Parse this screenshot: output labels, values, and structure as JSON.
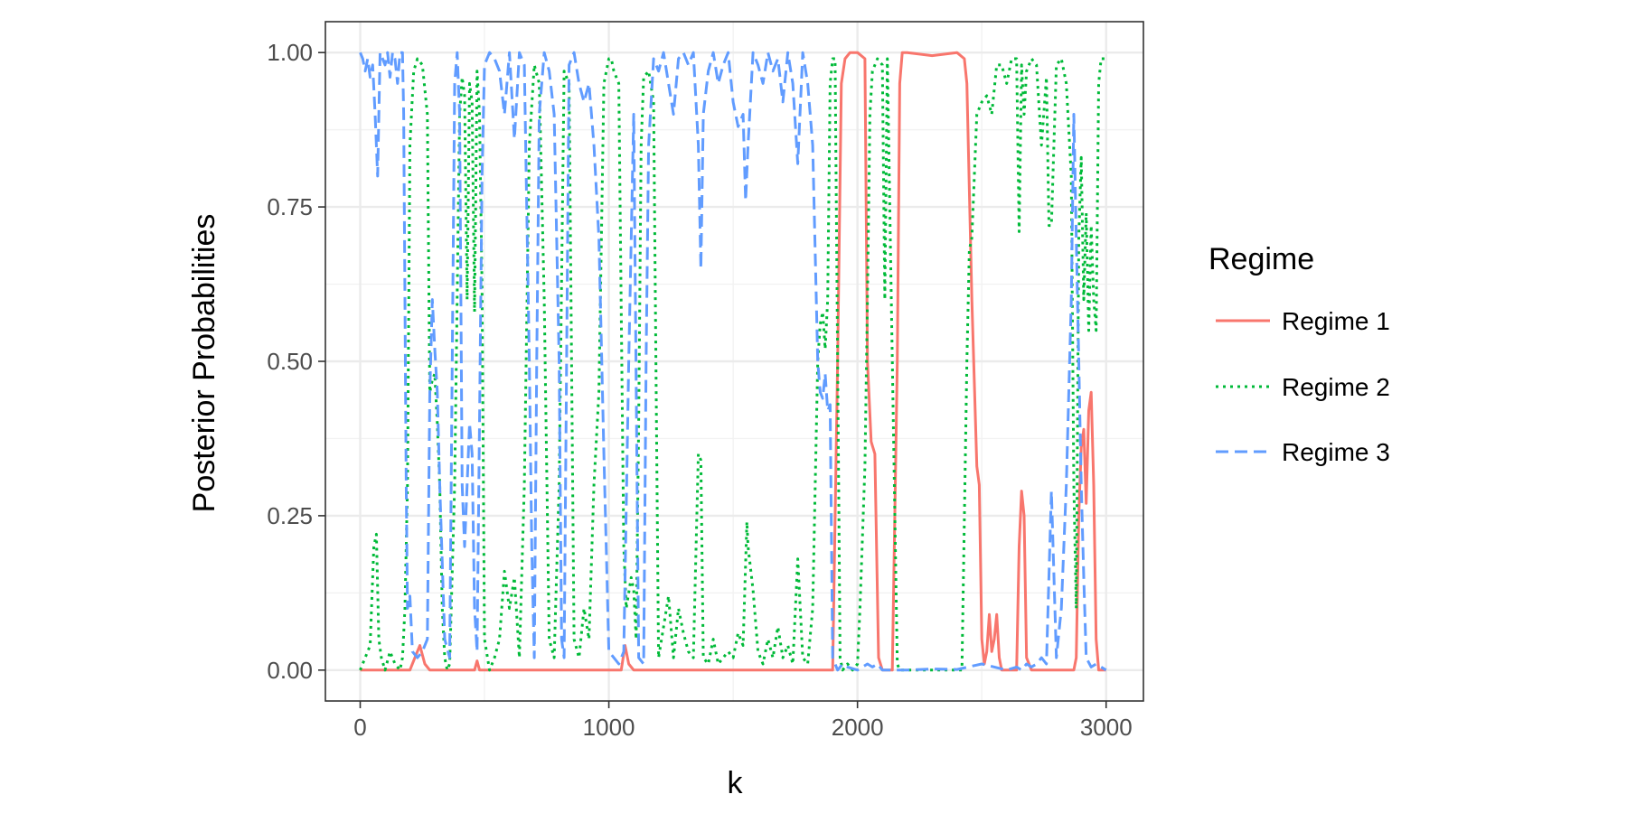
{
  "chart_data": {
    "type": "line",
    "title": "",
    "xlabel": "k",
    "ylabel": "Posterior Probabilities",
    "xlim": [
      -140,
      3150
    ],
    "ylim": [
      -0.05,
      1.05
    ],
    "x_ticks": [
      0,
      1000,
      2000,
      3000
    ],
    "x_tick_labels": [
      "0",
      "1000",
      "2000",
      "3000"
    ],
    "y_ticks": [
      0,
      0.25,
      0.5,
      0.75,
      1
    ],
    "y_tick_labels": [
      "0.00",
      "0.25",
      "0.50",
      "0.75",
      "1.00"
    ],
    "grid": true,
    "legend": {
      "title": "Regime",
      "position": "right"
    },
    "series": [
      {
        "name": "Regime 1",
        "color": "#F8766D",
        "dash": "solid",
        "x": [
          0,
          200,
          220,
          240,
          260,
          280,
          300,
          460,
          470,
          480,
          500,
          1050,
          1065,
          1080,
          1100,
          1900,
          1920,
          1935,
          1950,
          1970,
          2000,
          2030,
          2040,
          2055,
          2070,
          2085,
          2100,
          2140,
          2160,
          2170,
          2180,
          2200,
          2300,
          2400,
          2430,
          2440,
          2460,
          2480,
          2490,
          2500,
          2510,
          2520,
          2530,
          2540,
          2550,
          2560,
          2570,
          2580,
          2600,
          2640,
          2650,
          2660,
          2670,
          2680,
          2700,
          2870,
          2880,
          2890,
          2900,
          2910,
          2920,
          2930,
          2940,
          2950,
          2960,
          2970,
          3000
        ],
        "y": [
          0,
          0,
          0.02,
          0.04,
          0.01,
          0,
          0,
          0,
          0.015,
          0,
          0,
          0,
          0.04,
          0.01,
          0,
          0,
          0.5,
          0.95,
          0.99,
          1.0,
          1.0,
          0.99,
          0.5,
          0.37,
          0.35,
          0.02,
          0,
          0,
          0.5,
          0.95,
          1.0,
          1.0,
          0.995,
          1.0,
          0.99,
          0.95,
          0.6,
          0.33,
          0.3,
          0.05,
          0.01,
          0.03,
          0.09,
          0.03,
          0.05,
          0.09,
          0.02,
          0,
          0,
          0,
          0.2,
          0.29,
          0.25,
          0.02,
          0,
          0,
          0.02,
          0.25,
          0.36,
          0.39,
          0.27,
          0.42,
          0.45,
          0.3,
          0.05,
          0,
          0
        ]
      },
      {
        "name": "Regime 2",
        "color": "#00BA38",
        "dash": "dotted",
        "x": [
          0,
          20,
          40,
          55,
          65,
          75,
          85,
          100,
          120,
          140,
          160,
          170,
          180,
          190,
          200,
          215,
          230,
          250,
          270,
          280,
          290,
          300,
          310,
          320,
          330,
          340,
          350,
          360,
          380,
          400,
          410,
          420,
          430,
          440,
          450,
          460,
          470,
          480,
          490,
          500,
          520,
          540,
          560,
          580,
          600,
          620,
          640,
          660,
          680,
          700,
          720,
          740,
          760,
          780,
          800,
          820,
          840,
          860,
          880,
          900,
          920,
          940,
          960,
          980,
          1000,
          1010,
          1020,
          1040,
          1060,
          1070,
          1090,
          1100,
          1110,
          1120,
          1130,
          1140,
          1160,
          1180,
          1200,
          1220,
          1240,
          1260,
          1280,
          1300,
          1320,
          1340,
          1360,
          1370,
          1380,
          1400,
          1420,
          1440,
          1460,
          1480,
          1500,
          1520,
          1540,
          1555,
          1560,
          1580,
          1600,
          1620,
          1640,
          1660,
          1680,
          1700,
          1720,
          1740,
          1760,
          1780,
          1800,
          1820,
          1840,
          1850,
          1860,
          1870,
          1880,
          1890,
          1900,
          1910,
          1920,
          1930,
          1940,
          1960,
          1980,
          2000,
          2010,
          2030,
          2040,
          2050,
          2060,
          2080,
          2100,
          2110,
          2120,
          2140,
          2160,
          2170,
          2200,
          2300,
          2400,
          2420,
          2440,
          2450,
          2460,
          2480,
          2500,
          2520,
          2540,
          2560,
          2580,
          2600,
          2620,
          2640,
          2650,
          2660,
          2670,
          2680,
          2700,
          2720,
          2740,
          2760,
          2770,
          2780,
          2800,
          2820,
          2840,
          2860,
          2870,
          2880,
          2890,
          2900,
          2910,
          2920,
          2930,
          2940,
          2950,
          2960,
          2970,
          2980,
          3000
        ],
        "y": [
          0,
          0.02,
          0.04,
          0.2,
          0.22,
          0.05,
          0.02,
          0,
          0.03,
          0.01,
          0,
          0.02,
          0.1,
          0.3,
          0.85,
          0.97,
          0.99,
          0.98,
          0.9,
          0.45,
          0.47,
          0.48,
          0.4,
          0.3,
          0.1,
          0.02,
          0,
          0.01,
          0.3,
          0.9,
          0.96,
          0.93,
          0.6,
          0.95,
          0.92,
          0.58,
          0.97,
          0.9,
          0.62,
          0.05,
          0,
          0.02,
          0.05,
          0.16,
          0.1,
          0.15,
          0.02,
          0.3,
          0.85,
          0.98,
          0.95,
          0.6,
          0.05,
          0.02,
          0.3,
          0.97,
          0.95,
          0.05,
          0.02,
          0.1,
          0.05,
          0.3,
          0.45,
          0.95,
          0.99,
          0.99,
          0.97,
          0.95,
          0.2,
          0.1,
          0.15,
          0.13,
          0.05,
          0.4,
          0.85,
          0.96,
          0.97,
          0.92,
          0.02,
          0.07,
          0.12,
          0.02,
          0.1,
          0.06,
          0.03,
          0.02,
          0.35,
          0.34,
          0.02,
          0.01,
          0.05,
          0.01,
          0.02,
          0.03,
          0.02,
          0.06,
          0.04,
          0.24,
          0.2,
          0.13,
          0.03,
          0.01,
          0.05,
          0.02,
          0.07,
          0.02,
          0.04,
          0.01,
          0.18,
          0.02,
          0.01,
          0.1,
          0.5,
          0.56,
          0.58,
          0.52,
          0.6,
          0.95,
          0.99,
          0.99,
          0.5,
          0.02,
          0,
          0.01,
          0,
          0.01,
          0.1,
          0.33,
          0.6,
          0.9,
          0.97,
          0.99,
          0.98,
          0.6,
          0.99,
          0.5,
          0.01,
          0,
          0,
          0,
          0,
          0,
          0.5,
          0.68,
          0.7,
          0.9,
          0.92,
          0.93,
          0.9,
          0.98,
          0.98,
          0.95,
          0.99,
          0.99,
          0.71,
          0.98,
          0.9,
          0.97,
          0.99,
          0.98,
          0.85,
          0.96,
          0.72,
          0.72,
          0.98,
          0.99,
          0.95,
          0.8,
          0.3,
          0.1,
          0.7,
          0.83,
          0.6,
          0.74,
          0.55,
          0.72,
          0.6,
          0.55,
          0.95,
          0.99,
          0.99
        ]
      },
      {
        "name": "Regime 3",
        "color": "#619CFF",
        "dash": "dashed",
        "x": [
          0,
          10,
          20,
          30,
          40,
          50,
          60,
          70,
          80,
          90,
          100,
          110,
          120,
          130,
          140,
          150,
          160,
          170,
          175,
          180,
          185,
          190,
          200,
          210,
          230,
          250,
          270,
          280,
          290,
          300,
          310,
          320,
          340,
          360,
          380,
          390,
          400,
          410,
          420,
          430,
          440,
          450,
          460,
          470,
          480,
          490,
          500,
          520,
          540,
          560,
          580,
          600,
          620,
          640,
          660,
          680,
          690,
          700,
          710,
          720,
          740,
          760,
          780,
          800,
          810,
          820,
          840,
          860,
          880,
          900,
          920,
          940,
          960,
          980,
          1000,
          1020,
          1040,
          1060,
          1080,
          1100,
          1120,
          1140,
          1150,
          1160,
          1180,
          1200,
          1220,
          1240,
          1260,
          1280,
          1300,
          1320,
          1340,
          1360,
          1370,
          1380,
          1400,
          1420,
          1440,
          1460,
          1480,
          1500,
          1520,
          1540,
          1550,
          1560,
          1580,
          1600,
          1620,
          1640,
          1660,
          1680,
          1700,
          1720,
          1740,
          1760,
          1780,
          1800,
          1820,
          1840,
          1850,
          1860,
          1870,
          1880,
          1890,
          1900,
          1910,
          1920,
          1940,
          1960,
          2000,
          2040,
          2060,
          2080,
          2100,
          2140,
          2200,
          2300,
          2400,
          2500,
          2600,
          2640,
          2660,
          2680,
          2700,
          2720,
          2740,
          2760,
          2780,
          2800,
          2820,
          2840,
          2860,
          2870,
          2880,
          2890,
          2900,
          2910,
          2920,
          2940,
          2960,
          3000
        ],
        "y": [
          1.0,
          0.99,
          0.97,
          0.99,
          0.96,
          0.98,
          0.9,
          0.8,
          1.0,
          0.99,
          0.98,
          1.0,
          0.96,
          1.0,
          0.99,
          0.95,
          1.0,
          1.0,
          0.9,
          0.6,
          0.3,
          0.1,
          0.12,
          0.03,
          0.02,
          0.03,
          0.05,
          0.45,
          0.6,
          0.52,
          0.45,
          0.3,
          0.05,
          0.02,
          0.95,
          1.0,
          0.9,
          0.3,
          0.2,
          0.3,
          0.4,
          0.35,
          0.1,
          0.03,
          0.4,
          0.8,
          0.98,
          1.0,
          0.99,
          0.97,
          0.9,
          1.0,
          0.86,
          1.0,
          0.98,
          0.5,
          0.2,
          0.02,
          0.5,
          0.9,
          1.0,
          0.97,
          0.9,
          0.5,
          0.05,
          0.02,
          0.98,
          1.0,
          0.95,
          0.92,
          0.95,
          0.85,
          0.7,
          0.35,
          0.03,
          0.02,
          0.01,
          0.03,
          0.5,
          0.9,
          0.02,
          0.01,
          0.5,
          0.85,
          0.99,
          0.97,
          1.0,
          0.95,
          0.9,
          0.99,
          1.0,
          0.98,
          1.0,
          0.85,
          0.65,
          0.9,
          0.97,
          1.0,
          0.95,
          0.98,
          1.0,
          0.92,
          0.88,
          0.9,
          0.76,
          0.85,
          1.0,
          0.98,
          0.95,
          1.0,
          0.97,
          0.99,
          0.92,
          1.0,
          0.95,
          0.82,
          1.0,
          0.95,
          0.85,
          0.5,
          0.45,
          0.44,
          0.48,
          0.42,
          0.43,
          0.02,
          0.01,
          0,
          0.01,
          0.005,
          0,
          0.01,
          0.005,
          0.01,
          0,
          0,
          0,
          0.002,
          0.001,
          0.01,
          0,
          0.005,
          0,
          0.01,
          0.005,
          0.01,
          0.02,
          0.01,
          0.29,
          0.02,
          0.1,
          0.3,
          0.6,
          0.9,
          0.7,
          0.5,
          0.3,
          0.15,
          0.02,
          0.005,
          0.01,
          0
        ]
      }
    ]
  }
}
